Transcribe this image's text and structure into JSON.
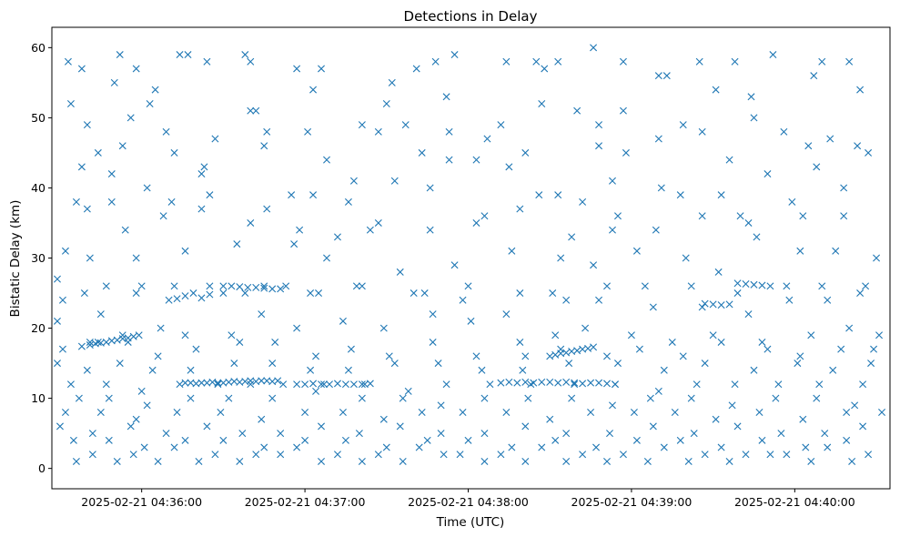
{
  "chart_data": {
    "type": "scatter",
    "title": "Detections in Delay",
    "xlabel": "Time (UTC)",
    "ylabel": "Bistatic Delay (km)",
    "x_ticks": [
      "2025-02-21 04:36:00",
      "2025-02-21 04:37:00",
      "2025-02-21 04:38:00",
      "2025-02-21 04:39:00",
      "2025-02-21 04:40:00"
    ],
    "y_ticks": [
      0,
      10,
      20,
      30,
      40,
      50,
      60
    ],
    "x_range": [
      "04:35:27",
      "04:40:35"
    ],
    "ylim": [
      -2.9,
      62.9
    ],
    "grid": false,
    "marker": "x",
    "color": "#1f77b4",
    "series": [
      {
        "x": [
          "04:35:33",
          "04:35:38",
          "04:35:52",
          "04:35:58",
          "04:36:05",
          "04:36:14",
          "04:36:24",
          "04:36:38",
          "04:36:40",
          "04:36:57",
          "04:37:06",
          "04:37:32",
          "04:37:41",
          "04:37:48",
          "04:37:55",
          "04:38:14",
          "04:38:25",
          "04:38:33",
          "04:38:46",
          "04:38:57",
          "04:39:13",
          "04:39:25",
          "04:39:38",
          "04:39:52",
          "04:40:10",
          "04:40:20",
          "04:35:34",
          "04:35:50",
          "04:36:03",
          "04:36:17",
          "04:36:40",
          "04:37:03",
          "04:37:21",
          "04:37:30",
          "04:37:52",
          "04:38:07",
          "04:38:28",
          "04:38:48",
          "04:38:57",
          "04:39:10",
          "04:39:31",
          "04:39:45",
          "04:40:07",
          "04:40:23",
          "04:35:40",
          "04:35:53",
          "04:36:09",
          "04:36:22",
          "04:36:42",
          "04:37:01",
          "04:37:18",
          "04:37:37",
          "04:37:53",
          "04:38:12",
          "04:38:27",
          "04:38:48",
          "04:39:10",
          "04:39:26",
          "04:39:44",
          "04:40:05",
          "04:40:24",
          "04:35:44",
          "04:35:56",
          "04:36:12",
          "04:36:27",
          "04:36:46",
          "04:37:08",
          "04:37:27",
          "04:37:43",
          "04:38:03",
          "04:38:21",
          "04:38:40",
          "04:38:58",
          "04:39:19",
          "04:39:36",
          "04:39:56",
          "04:40:13",
          "04:35:38",
          "04:35:49",
          "04:36:02",
          "04:36:23",
          "04:36:45",
          "04:36:55",
          "04:37:16",
          "04:37:33",
          "04:37:53",
          "04:38:15",
          "04:38:33",
          "04:38:53",
          "04:39:11",
          "04:39:33",
          "04:39:50",
          "04:40:08",
          "04:40:27",
          "04:35:36",
          "04:35:49",
          "04:36:11",
          "04:36:25",
          "04:36:46",
          "04:37:03",
          "04:37:24",
          "04:37:46",
          "04:38:06",
          "04:38:26",
          "04:38:42",
          "04:38:55",
          "04:39:18",
          "04:39:40",
          "04:39:59",
          "04:40:18",
          "04:35:40",
          "04:35:54",
          "04:36:08",
          "04:36:22",
          "04:36:40",
          "04:36:58",
          "04:37:12",
          "04:37:27",
          "04:37:46",
          "04:38:03",
          "04:38:19",
          "04:38:38",
          "04:38:53",
          "04:39:09",
          "04:39:26",
          "04:39:43",
          "04:40:03",
          "04:40:18",
          "04:35:32",
          "04:35:41",
          "04:35:58",
          "04:36:16",
          "04:36:35",
          "04:36:56",
          "04:37:08",
          "04:37:35",
          "04:37:55",
          "04:38:16",
          "04:38:34",
          "04:38:46",
          "04:39:02",
          "04:39:20",
          "04:39:32",
          "04:39:46",
          "04:40:02",
          "04:40:15",
          "04:40:30",
          "04:35:29",
          "04:35:39",
          "04:35:47",
          "04:36:00",
          "04:36:12",
          "04:36:30",
          "04:36:45",
          "04:37:02",
          "04:37:21",
          "04:37:44",
          "04:38:00",
          "04:38:19",
          "04:38:31",
          "04:38:51",
          "04:39:05",
          "04:39:22",
          "04:39:39",
          "04:39:57",
          "04:40:10",
          "04:40:24",
          "04:35:31",
          "04:35:45",
          "04:35:58",
          "04:36:10",
          "04:36:25",
          "04:36:38",
          "04:36:53",
          "04:37:05",
          "04:37:19",
          "04:37:40",
          "04:37:58",
          "04:38:14",
          "04:38:36",
          "04:38:48",
          "04:39:08",
          "04:39:26",
          "04:39:43",
          "04:39:58",
          "04:40:12",
          "04:40:26",
          "04:35:29",
          "04:35:41",
          "04:35:53",
          "04:36:07",
          "04:36:16",
          "04:36:33",
          "04:36:44",
          "04:36:57",
          "04:37:14",
          "04:37:29",
          "04:37:47",
          "04:38:01",
          "04:38:19",
          "04:38:32",
          "04:38:43",
          "04:39:00",
          "04:39:15",
          "04:39:30",
          "04:39:48",
          "04:40:06",
          "04:40:20",
          "04:40:31",
          "04:35:31",
          "04:35:44",
          "04:35:55",
          "04:36:06",
          "04:36:20",
          "04:36:36",
          "04:36:49",
          "04:37:04",
          "04:37:17",
          "04:37:31",
          "04:37:47",
          "04:38:03",
          "04:38:21",
          "04:38:34",
          "04:38:51",
          "04:39:03",
          "04:39:19",
          "04:39:33",
          "04:39:50",
          "04:40:02",
          "04:40:17",
          "04:40:29",
          "04:35:29",
          "04:35:40",
          "04:35:52",
          "04:36:04",
          "04:36:18",
          "04:36:34",
          "04:36:48",
          "04:37:02",
          "04:37:16",
          "04:37:33",
          "04:37:49",
          "04:38:05",
          "04:38:20",
          "04:38:37",
          "04:38:55",
          "04:39:12",
          "04:39:27",
          "04:39:45",
          "04:40:01",
          "04:40:14",
          "04:40:28",
          "04:35:34",
          "04:35:47",
          "04:36:00",
          "04:36:14",
          "04:36:28",
          "04:36:40",
          "04:36:52",
          "04:37:07",
          "04:37:22",
          "04:37:38",
          "04:37:52",
          "04:38:08",
          "04:38:23",
          "04:38:39",
          "04:38:54",
          "04:39:10",
          "04:39:24",
          "04:39:38",
          "04:39:54",
          "04:40:09",
          "04:40:25",
          "04:35:37",
          "04:35:48",
          "04:36:02",
          "04:36:18",
          "04:36:32",
          "04:36:48",
          "04:37:04",
          "04:37:21",
          "04:37:36",
          "04:37:50",
          "04:38:06",
          "04:38:22",
          "04:38:38",
          "04:38:53",
          "04:39:07",
          "04:39:22",
          "04:39:37",
          "04:39:53",
          "04:40:08",
          "04:40:22",
          "04:35:32",
          "04:35:45",
          "04:35:58",
          "04:36:13",
          "04:36:29",
          "04:36:44",
          "04:37:00",
          "04:37:14",
          "04:37:29",
          "04:37:43",
          "04:37:58",
          "04:38:14",
          "04:38:30",
          "04:38:45",
          "04:39:01",
          "04:39:16",
          "04:39:31",
          "04:39:47",
          "04:40:03",
          "04:40:19",
          "04:40:32",
          "04:35:30",
          "04:35:42",
          "04:35:56",
          "04:36:09",
          "04:36:24",
          "04:36:37",
          "04:36:51",
          "04:37:06",
          "04:37:20",
          "04:37:35",
          "04:37:50",
          "04:38:06",
          "04:38:21",
          "04:38:36",
          "04:38:52",
          "04:39:08",
          "04:39:23",
          "04:39:39",
          "04:39:55",
          "04:40:11",
          "04:40:25",
          "04:35:35",
          "04:35:48",
          "04:36:01",
          "04:36:16",
          "04:36:30",
          "04:36:45",
          "04:37:00",
          "04:37:15",
          "04:37:30",
          "04:37:45",
          "04:38:00",
          "04:38:16",
          "04:38:32",
          "04:38:47",
          "04:39:02",
          "04:39:18",
          "04:39:33",
          "04:39:48",
          "04:40:04",
          "04:40:19",
          "04:35:42",
          "04:35:57",
          "04:36:12",
          "04:36:27",
          "04:36:42",
          "04:36:57",
          "04:37:12",
          "04:37:27",
          "04:37:42",
          "04:37:57",
          "04:38:12",
          "04:38:27",
          "04:38:42",
          "04:38:57",
          "04:39:12",
          "04:39:27",
          "04:39:42",
          "04:39:57",
          "04:40:12",
          "04:40:27",
          "04:35:36",
          "04:35:51",
          "04:36:06",
          "04:36:21",
          "04:36:36",
          "04:36:51",
          "04:37:06",
          "04:37:21",
          "04:37:36",
          "04:37:51",
          "04:38:06",
          "04:38:21",
          "04:38:36",
          "04:38:51",
          "04:39:06",
          "04:39:21",
          "04:39:36",
          "04:39:51",
          "04:40:06",
          "04:40:21"
        ],
        "y": [
          58,
          57,
          59,
          57,
          54,
          59,
          58,
          59,
          58,
          57,
          57,
          55,
          57,
          58,
          59,
          58,
          58,
          58,
          60,
          58,
          56,
          58,
          58,
          59,
          58,
          58,
          52,
          55,
          52,
          59,
          51,
          54,
          49,
          52,
          53,
          47,
          57,
          49,
          51,
          56,
          54,
          50,
          56,
          46,
          49,
          46,
          48,
          42,
          51,
          48,
          41,
          49,
          48,
          49,
          52,
          46,
          47,
          48,
          53,
          46,
          54,
          45,
          50,
          45,
          47,
          48,
          44,
          48,
          45,
          44,
          45,
          51,
          45,
          49,
          44,
          48,
          47,
          43,
          42,
          40,
          43,
          46,
          39,
          38,
          41,
          44,
          43,
          39,
          41,
          40,
          39,
          42,
          43,
          45,
          38,
          38,
          38,
          39,
          37,
          39,
          34,
          40,
          36,
          39,
          38,
          36,
          39,
          36,
          38,
          40,
          37,
          34,
          36,
          37,
          35,
          34,
          33,
          35,
          34,
          35,
          37,
          33,
          34,
          34,
          36,
          35,
          36,
          36,
          31,
          30,
          30,
          31,
          32,
          32,
          30,
          28,
          29,
          31,
          30,
          29,
          31,
          30,
          28,
          33,
          31,
          31,
          30,
          27,
          25,
          26,
          26,
          26,
          25,
          26,
          25,
          26,
          25,
          26,
          25,
          25,
          26,
          26,
          26,
          25,
          26,
          26,
          25,
          24,
          22,
          25,
          24,
          26,
          25,
          26,
          25,
          26,
          25,
          24,
          22,
          24,
          24,
          23,
          23,
          22,
          24,
          24,
          26,
          21,
          18,
          19,
          20,
          19,
          19,
          22,
          20,
          21,
          20,
          22,
          21,
          18,
          19,
          20,
          19,
          18,
          19,
          18,
          19,
          20,
          19,
          17,
          18,
          18,
          16,
          17,
          18,
          18,
          16,
          17,
          16,
          18,
          16,
          16,
          17,
          16,
          17,
          16,
          18,
          17,
          16,
          17,
          17,
          15,
          14,
          15,
          14,
          14,
          15,
          15,
          14,
          14,
          15,
          15,
          14,
          14,
          15,
          15,
          14,
          15,
          14,
          15,
          14,
          15,
          12,
          12,
          11,
          12,
          12,
          12,
          12,
          12,
          12,
          11,
          12,
          12,
          12,
          12,
          12,
          11,
          12,
          12,
          12,
          12,
          12,
          10,
          10,
          9,
          10,
          10,
          10,
          11,
          10,
          10,
          9,
          10,
          10,
          10,
          9,
          10,
          10,
          9,
          10,
          10,
          9,
          8,
          8,
          7,
          8,
          8,
          7,
          8,
          8,
          7,
          8,
          8,
          8,
          7,
          8,
          8,
          8,
          7,
          8,
          7,
          8,
          8,
          6,
          5,
          6,
          5,
          6,
          5,
          5,
          6,
          5,
          6,
          5,
          5,
          6,
          5,
          5,
          6,
          5,
          6,
          5,
          5,
          6,
          4,
          4,
          3,
          4,
          4,
          3,
          4,
          4,
          3,
          4,
          4,
          3,
          4,
          3,
          4,
          4,
          3,
          4,
          3,
          4,
          2,
          2,
          3,
          2,
          2,
          3,
          2,
          2,
          3,
          2,
          2,
          3,
          2,
          2,
          3,
          2,
          2,
          2,
          3,
          2,
          1,
          1,
          1,
          1,
          1,
          2,
          1,
          1,
          1,
          2,
          1,
          1,
          1,
          1,
          1,
          1,
          1,
          2,
          1,
          1
        ]
      },
      {
        "x": [
          "04:35:38",
          "04:35:41",
          "04:35:43",
          "04:35:45",
          "04:35:47",
          "04:35:49",
          "04:35:51",
          "04:35:53",
          "04:35:55",
          "04:35:57",
          "04:35:59",
          "04:36:16",
          "04:36:18",
          "04:36:20",
          "04:36:22",
          "04:36:24",
          "04:36:26",
          "04:36:28",
          "04:36:30",
          "04:36:32",
          "04:36:34",
          "04:36:36",
          "04:36:38",
          "04:36:40",
          "04:36:42",
          "04:36:44",
          "04:36:46",
          "04:36:48",
          "04:36:50",
          "04:36:57",
          "04:37:00",
          "04:37:03",
          "04:37:06",
          "04:37:09",
          "04:37:12",
          "04:37:15",
          "04:37:18",
          "04:37:21",
          "04:37:24",
          "04:38:12",
          "04:38:15",
          "04:38:18",
          "04:38:21",
          "04:38:24",
          "04:38:27",
          "04:38:30",
          "04:38:33",
          "04:38:36",
          "04:38:39",
          "04:38:42",
          "04:38:45",
          "04:38:48",
          "04:38:51",
          "04:38:54",
          "04:38:30",
          "04:38:32",
          "04:38:34",
          "04:38:36",
          "04:38:38",
          "04:38:40",
          "04:38:42",
          "04:38:44",
          "04:38:46",
          "04:36:30",
          "04:36:33",
          "04:36:36",
          "04:36:39",
          "04:36:42",
          "04:36:45",
          "04:36:48",
          "04:36:51",
          "04:39:27",
          "04:39:30",
          "04:39:33",
          "04:39:36",
          "04:39:39",
          "04:39:42",
          "04:39:45",
          "04:39:48",
          "04:39:51",
          "04:36:13",
          "04:36:16",
          "04:36:19",
          "04:36:22",
          "04:36:25"
        ],
        "y": [
          17.4,
          17.6,
          17.8,
          17.9,
          18.0,
          18.2,
          18.3,
          18.5,
          18.6,
          18.8,
          19.0,
          12.2,
          12.2,
          12.1,
          12.2,
          12.2,
          12.3,
          12.2,
          12.2,
          12.3,
          12.4,
          12.3,
          12.4,
          12.5,
          12.4,
          12.5,
          12.5,
          12.4,
          12.5,
          12.0,
          12.0,
          12.1,
          12.0,
          12.0,
          12.1,
          12.0,
          12.0,
          12.0,
          12.1,
          12.2,
          12.3,
          12.2,
          12.3,
          12.2,
          12.3,
          12.3,
          12.2,
          12.3,
          12.2,
          12.1,
          12.2,
          12.2,
          12.1,
          12.0,
          16.0,
          16.2,
          16.4,
          16.5,
          16.7,
          16.8,
          17.0,
          17.1,
          17.3,
          26.0,
          26.0,
          25.9,
          25.8,
          25.8,
          25.7,
          25.6,
          25.6,
          23.5,
          23.4,
          23.3,
          23.4,
          26.4,
          26.3,
          26.2,
          26.1,
          26.0,
          24.2,
          24.6,
          25.0,
          24.3,
          24.8
        ]
      }
    ]
  }
}
